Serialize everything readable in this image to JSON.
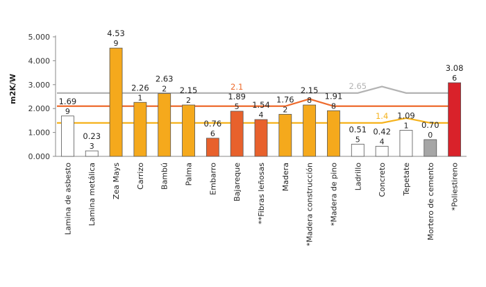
{
  "chart_data": {
    "type": "bar",
    "title": "",
    "xlabel": "",
    "ylabel": "m2K/W",
    "ylim": [
      0,
      5
    ],
    "yticks": [
      "0.000",
      "1.000",
      "2.000",
      "3.000",
      "4.000",
      "5.000"
    ],
    "categories": [
      "Lamina de asbesto",
      "Lamina metálica",
      "Zea Mays",
      "Carrizo",
      "Bambú",
      "Palma",
      "Embarro",
      "Bajareque",
      "**Fibras leñosas",
      "Madera",
      "*Madera construcción",
      "*Madera de pino",
      "Ladrillo",
      "Concreto",
      "Tepetate",
      "Mortero de cemento",
      "*Poliestireno"
    ],
    "values": [
      1.69,
      0.23,
      4.53,
      2.26,
      2.63,
      2.15,
      0.76,
      1.89,
      1.54,
      1.76,
      2.15,
      1.91,
      0.51,
      0.42,
      1.09,
      0.7,
      3.08
    ],
    "value_labels": [
      "1.69",
      "0.23",
      "4.53",
      "2.26",
      "2.63",
      "2.15",
      "0.76",
      "1.89",
      "1.54",
      "1.76",
      "2.15",
      "1.91",
      "0.51",
      "0.42",
      "1.09",
      "0.70",
      "3.08"
    ],
    "count_labels": [
      "9",
      "3",
      "9",
      "1",
      "2",
      "2",
      "6",
      "5",
      "4",
      "2",
      "8",
      "8",
      "5",
      "4",
      "1",
      "0",
      "6"
    ],
    "bar_colors": [
      "#ffffff",
      "#ffffff",
      "#f5a91c",
      "#f5a91c",
      "#f5a91c",
      "#f5a91c",
      "#e8612c",
      "#e8612c",
      "#e8612c",
      "#f5a91c",
      "#f5a91c",
      "#f5a91c",
      "#ffffff",
      "#ffffff",
      "#ffffff",
      "#a6a6a6",
      "#d9222a"
    ],
    "reference_lines": [
      {
        "name": "gray",
        "color": "#b3b3b3",
        "label": "2.65",
        "values": [
          2.65,
          2.65,
          2.65,
          2.65,
          2.65,
          2.65,
          2.65,
          2.65,
          2.65,
          2.65,
          2.65,
          2.65,
          2.65,
          2.92,
          2.65,
          2.65,
          2.65
        ]
      },
      {
        "name": "orange",
        "color": "#ee6a2c",
        "label": "2.1",
        "values": [
          2.1,
          2.1,
          2.1,
          2.1,
          2.1,
          2.1,
          2.1,
          2.1,
          2.1,
          2.1,
          2.4,
          2.1,
          2.1,
          2.1,
          2.1,
          2.1,
          2.1
        ]
      },
      {
        "name": "yellow",
        "color": "#f5b21c",
        "label": "1.4",
        "values": [
          1.4,
          1.4,
          1.4,
          1.4,
          1.4,
          1.4,
          1.4,
          1.4,
          1.4,
          1.4,
          1.4,
          1.4,
          1.4,
          1.4,
          1.6,
          1.4,
          1.4
        ]
      }
    ],
    "grid": false,
    "legend": "none"
  }
}
